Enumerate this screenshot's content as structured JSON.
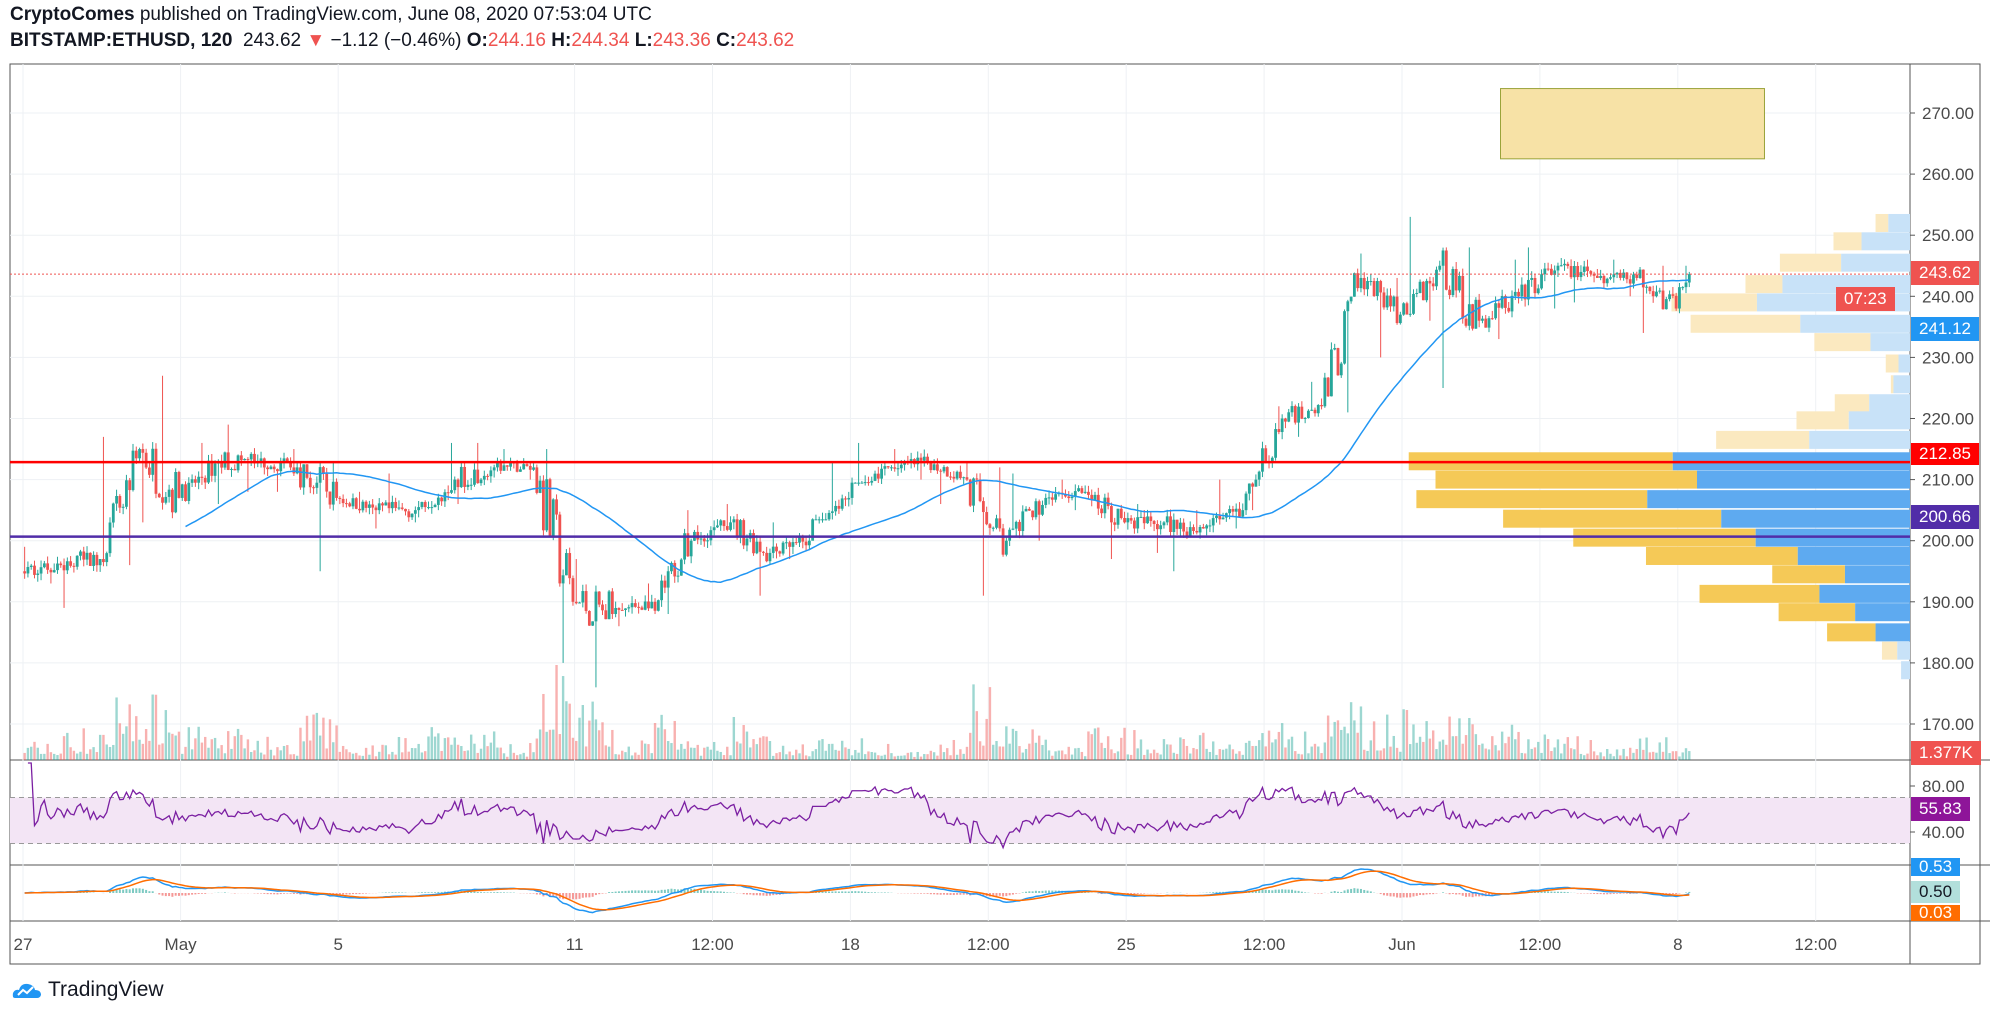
{
  "header": {
    "author": "CryptoComes",
    "published": "published on TradingView.com, June 08, 2020 07:53:04 UTC",
    "symbol": "BITSTAMP:ETHUSD, 120",
    "last": "243.62",
    "change": "−1.12 (−0.46%)",
    "o_label": "O:",
    "o": "244.16",
    "h_label": "H:",
    "h": "244.34",
    "l_label": "L:",
    "l": "243.36",
    "c_label": "C:",
    "c": "243.62"
  },
  "footer": {
    "brand": "TradingView"
  },
  "colors": {
    "up": "#26a69a",
    "down": "#ef5350",
    "ma": "#2196f3",
    "support_red": "#ff0000",
    "support_purple": "#512da8",
    "rsi": "#7b1fa2",
    "macd": "#2196f3",
    "signal": "#ff6d00",
    "zone": "#f7e2a6"
  },
  "tags": {
    "last_price": "243.62",
    "countdown": "07:23",
    "ma_value": "241.12",
    "level_red": "212.85",
    "level_purple": "200.66",
    "volume": "1.377K",
    "rsi": "55.83",
    "macd": "0.53",
    "hist": "0.50",
    "signal": "0.03"
  },
  "chart_data": {
    "type": "candlestick",
    "interval_minutes": 120,
    "y_ticks": [
      "270.00",
      "260.00",
      "250.00",
      "240.00",
      "230.00",
      "220.00",
      "210.00",
      "200.00",
      "190.00",
      "180.00",
      "170.00"
    ],
    "ylim": [
      168,
      276
    ],
    "x_tick_labels": [
      "27",
      "May",
      "5",
      "11",
      "12:00",
      "18",
      "12:00",
      "25",
      "12:00",
      "Jun",
      "12:00",
      "8",
      "12:00"
    ],
    "x_tick_days": [
      0,
      4,
      8,
      14,
      17.5,
      21,
      24.5,
      28,
      31.5,
      35,
      38.5,
      42,
      45.5
    ],
    "days": [
      "Apr 27",
      "Apr 28",
      "Apr 29",
      "Apr 30",
      "May 1",
      "May 2",
      "May 3",
      "May 4",
      "May 5",
      "May 6",
      "May 7",
      "May 8",
      "May 9",
      "May 10",
      "May 11",
      "May 12",
      "May 13",
      "May 14",
      "May 15",
      "May 16",
      "May 17",
      "May 18",
      "May 19",
      "May 20",
      "May 21",
      "May 22",
      "May 23",
      "May 24",
      "May 25",
      "May 26",
      "May 27",
      "May 28",
      "May 29",
      "May 30",
      "May 31",
      "Jun 1",
      "Jun 2",
      "Jun 3",
      "Jun 4",
      "Jun 5",
      "Jun 6",
      "Jun 7",
      "Jun 8"
    ],
    "daily_close": [
      196,
      197,
      215,
      207,
      213,
      213,
      212,
      207,
      205,
      205,
      210,
      212,
      212,
      190,
      188,
      190,
      200,
      203,
      198,
      200,
      207,
      212,
      213,
      210,
      200,
      207,
      208,
      203,
      203,
      202,
      205,
      220,
      222,
      243,
      237,
      245,
      236,
      240,
      245,
      243,
      243,
      238,
      243.62
    ],
    "daily_high": [
      199,
      199,
      217,
      227,
      216,
      219,
      215,
      213,
      208,
      211,
      216,
      216,
      215,
      215,
      197,
      193,
      205,
      206,
      204,
      203,
      213,
      216,
      215,
      213,
      212,
      211,
      210,
      208,
      206,
      205,
      210,
      222,
      226,
      247,
      243,
      253,
      248,
      246,
      248,
      246,
      246,
      245,
      245
    ],
    "daily_low": [
      193,
      189,
      196,
      203,
      206,
      208,
      208,
      195,
      202,
      203,
      205,
      206,
      210,
      180,
      176,
      186,
      188,
      199,
      191,
      197,
      203,
      209,
      210,
      206,
      191,
      200,
      205,
      197,
      198,
      195,
      202,
      205,
      217,
      221,
      230,
      236,
      225,
      233,
      238,
      239,
      240,
      234,
      241
    ],
    "horizontal_levels": [
      {
        "price": 243.62,
        "style": "dotted"
      },
      {
        "price": 212.85,
        "color": "#ff0000"
      },
      {
        "price": 200.66,
        "color": "#512da8"
      }
    ],
    "target_zone": {
      "price_from": 262.5,
      "price_to": 274,
      "day_from": 37.5,
      "day_to": 44.2
    },
    "volume_profile": {
      "bins": [
        252,
        249,
        245.5,
        242,
        239,
        235.5,
        232.5,
        229,
        225.6,
        222.5,
        219.7,
        216.5,
        213,
        210,
        206.8,
        203.6,
        200.5,
        197.5,
        194.5,
        191.3,
        188.3,
        185,
        182,
        178.8
      ],
      "total": [
        27,
        60,
        102,
        129,
        187,
        172,
        75,
        19,
        15,
        59,
        89,
        152,
        393,
        372,
        387,
        319,
        264,
        207,
        108,
        165,
        103,
        65,
        22,
        7
      ],
      "up": [
        17,
        38,
        54,
        100,
        120,
        86,
        31,
        9,
        13,
        32,
        48,
        79,
        186,
        167,
        206,
        148,
        121,
        88,
        51,
        71,
        43,
        27,
        10,
        7
      ],
      "value_area": [
        12,
        21
      ]
    },
    "ma_period": 50,
    "rsi": {
      "period": 14,
      "levels": [
        70,
        30
      ],
      "ticks": [
        "80.00",
        "40.00"
      ]
    },
    "macd": {
      "fast": 12,
      "slow": 26,
      "signal": 9
    }
  }
}
